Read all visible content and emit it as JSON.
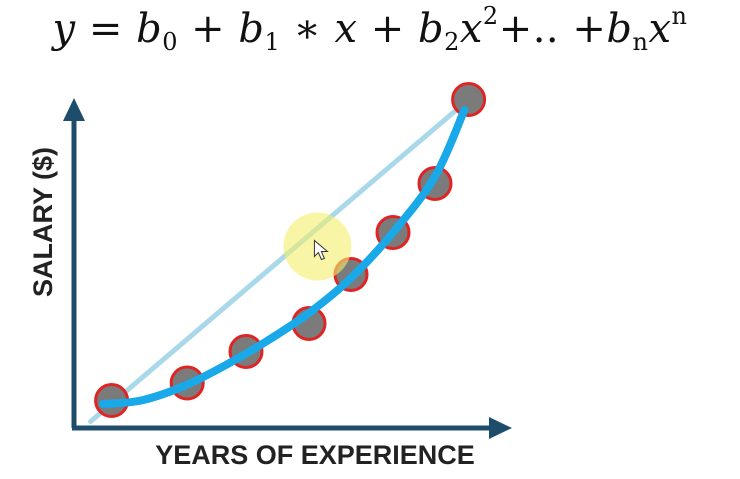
{
  "formula": {
    "y": "y",
    "eq": " = ",
    "b": "b",
    "sub0": "0",
    "sub1": "1",
    "sub2": "2",
    "subn": "n",
    "x": "x",
    "sup2": "2",
    "supn": "n",
    "plus": " + ",
    "times": " ∗ ",
    "ellipsis": "+.. +"
  },
  "chart_data": {
    "type": "scatter",
    "title": "",
    "xlabel": "YEARS OF EXPERIENCE",
    "ylabel": "SALARY ($)",
    "xlim": [
      0,
      10
    ],
    "ylim": [
      0,
      10
    ],
    "series": [
      {
        "kind": "points",
        "x": [
          0.8,
          2.6,
          4.0,
          5.5,
          6.5,
          7.5,
          8.5,
          9.3
        ],
        "y": [
          0.7,
          1.2,
          2.1,
          2.9,
          4.3,
          5.5,
          6.9,
          9.3
        ]
      },
      {
        "kind": "linear-fit",
        "x": [
          0.3,
          9.3
        ],
        "y": [
          0.1,
          9.3
        ]
      },
      {
        "kind": "polynomial-fit",
        "x": [
          0.6,
          1.5,
          2.5,
          3.5,
          4.5,
          5.5,
          6.5,
          7.5,
          8.5,
          9.2
        ],
        "y": [
          0.6,
          0.7,
          1.1,
          1.7,
          2.4,
          3.2,
          4.2,
          5.5,
          7.1,
          9.0
        ]
      }
    ],
    "grid": false,
    "legend": "none",
    "colors": {
      "axes": "#1e4d6b",
      "point_fill": "#7b7b7b",
      "point_edge": "#e02424",
      "linear_fit": "#a8d8ea",
      "polynomial_fit": "#19a8e8",
      "cursor_highlight": "#f4f06a"
    },
    "cursor": {
      "x": 5.7,
      "y": 5.1
    }
  }
}
